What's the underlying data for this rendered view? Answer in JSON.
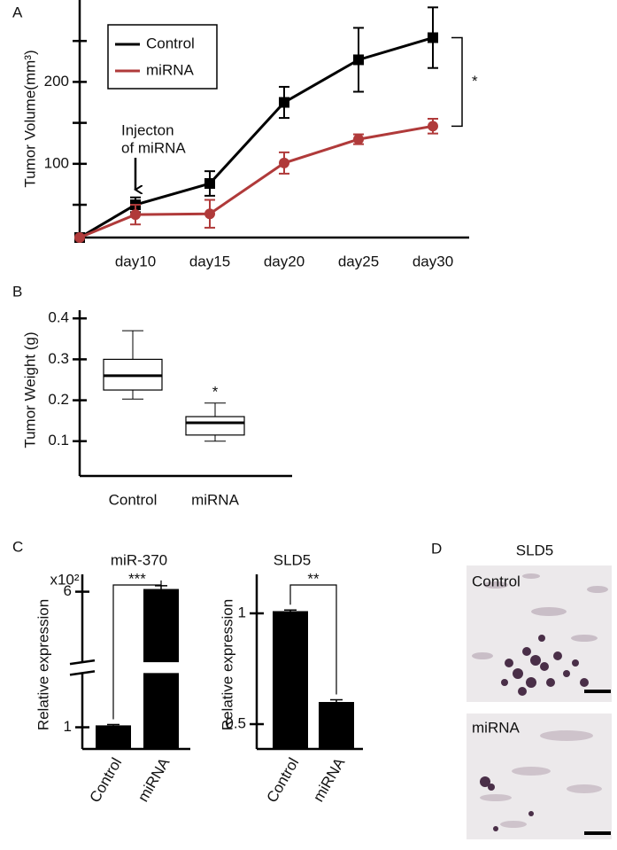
{
  "chart_data": [
    {
      "panel": "A",
      "type": "line",
      "y_label": "Tumor Volume(mm³)",
      "categories": [
        null,
        "day10",
        "day15",
        "day20",
        "day25",
        "day30"
      ],
      "series": [
        {
          "name": "Control",
          "color": "#000000",
          "marker": "square",
          "values": [
            10,
            50,
            76,
            175,
            227,
            254
          ],
          "errors": [
            null,
            9,
            15,
            19,
            39,
            37
          ]
        },
        {
          "name": "miRNA",
          "color": "#b03a3a",
          "marker": "circle",
          "values": [
            10,
            38,
            39,
            101,
            130,
            146
          ],
          "errors": [
            null,
            12,
            17,
            13,
            6,
            9
          ]
        }
      ],
      "ylim": [
        10,
        300
      ],
      "yticks": [
        100,
        200
      ],
      "minor_yticks": [
        50,
        150,
        250
      ],
      "annotation": [
        "Injecton",
        "of miRNA"
      ],
      "significance": "*"
    },
    {
      "panel": "B",
      "type": "box",
      "y_label": "Tumor Weight (g)",
      "categories": [
        "Control",
        "miRNA"
      ],
      "boxes": [
        {
          "whisker_low": 0.203,
          "q1": 0.225,
          "median": 0.26,
          "q3": 0.3,
          "whisker_high": 0.37
        },
        {
          "whisker_low": 0.1,
          "q1": 0.115,
          "median": 0.145,
          "q3": 0.16,
          "whisker_high": 0.193,
          "significance": "*"
        }
      ],
      "ylim": [
        0.015,
        0.42
      ],
      "yticks": [
        0.1,
        0.2,
        0.3,
        0.4
      ]
    },
    {
      "panel": "C",
      "type": "bar",
      "title": "miR-370",
      "multiplier": "x10²",
      "y_label": "Relative expression",
      "categories": [
        "Control",
        "miRNA"
      ],
      "values": [
        1.07,
        6.1
      ],
      "errors": [
        0.03,
        0.12
      ],
      "color": "#000000",
      "ylim": [
        0.2,
        6.64
      ],
      "yticks": [
        1,
        6
      ],
      "axis_break": [
        3.0,
        3.4
      ],
      "significance": "***"
    },
    {
      "type": "bar",
      "title": "SLD5",
      "y_label": "Relative expression",
      "categories": [
        "Control",
        "miRNA"
      ],
      "values": [
        1.01,
        0.6
      ],
      "errors": [
        0.005,
        0.01
      ],
      "color": "#000000",
      "ylim": [
        0.388,
        1.176
      ],
      "yticks": [
        0.5,
        1
      ],
      "significance": "**"
    }
  ],
  "panel_d": {
    "panel": "D",
    "title": "SLD5",
    "images": [
      "Control",
      "miRNA"
    ]
  }
}
